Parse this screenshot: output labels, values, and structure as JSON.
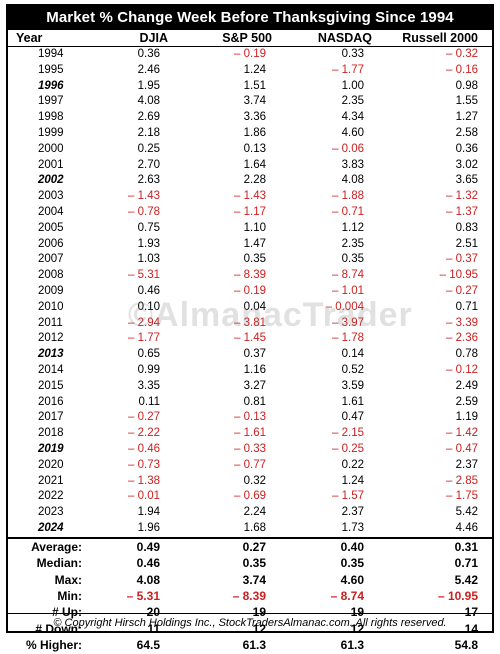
{
  "title": "Market % Change Week Before Thanksgiving Since 1994",
  "headers": [
    "Year",
    "DJIA",
    "S&P 500",
    "NASDAQ",
    "Russell 2000"
  ],
  "colors": {
    "negative": "#cc1f1f",
    "header_bg": "#000000"
  },
  "rows": [
    {
      "year": "1994",
      "election": false,
      "djia": "0.36",
      "sp": "– 0.19",
      "nasdaq": "0.33",
      "russell": "– 0.32"
    },
    {
      "year": "1995",
      "election": false,
      "djia": "2.46",
      "sp": "1.24",
      "nasdaq": "– 1.77",
      "russell": "– 0.16"
    },
    {
      "year": "1996",
      "election": true,
      "djia": "1.95",
      "sp": "1.51",
      "nasdaq": "1.00",
      "russell": "0.98"
    },
    {
      "year": "1997",
      "election": false,
      "djia": "4.08",
      "sp": "3.74",
      "nasdaq": "2.35",
      "russell": "1.55"
    },
    {
      "year": "1998",
      "election": false,
      "djia": "2.69",
      "sp": "3.36",
      "nasdaq": "4.34",
      "russell": "1.27"
    },
    {
      "year": "1999",
      "election": false,
      "djia": "2.18",
      "sp": "1.86",
      "nasdaq": "4.60",
      "russell": "2.58"
    },
    {
      "year": "2000",
      "election": false,
      "djia": "0.25",
      "sp": "0.13",
      "nasdaq": "– 0.06",
      "russell": "0.36"
    },
    {
      "year": "2001",
      "election": false,
      "djia": "2.70",
      "sp": "1.64",
      "nasdaq": "3.83",
      "russell": "3.02"
    },
    {
      "year": "2002",
      "election": true,
      "djia": "2.63",
      "sp": "2.28",
      "nasdaq": "4.08",
      "russell": "3.65"
    },
    {
      "year": "2003",
      "election": false,
      "djia": "– 1.43",
      "sp": "– 1.43",
      "nasdaq": "– 1.88",
      "russell": "– 1.32"
    },
    {
      "year": "2004",
      "election": false,
      "djia": "– 0.78",
      "sp": "– 1.17",
      "nasdaq": "– 0.71",
      "russell": "– 1.37"
    },
    {
      "year": "2005",
      "election": false,
      "djia": "0.75",
      "sp": "1.10",
      "nasdaq": "1.12",
      "russell": "0.83"
    },
    {
      "year": "2006",
      "election": false,
      "djia": "1.93",
      "sp": "1.47",
      "nasdaq": "2.35",
      "russell": "2.51"
    },
    {
      "year": "2007",
      "election": false,
      "djia": "1.03",
      "sp": "0.35",
      "nasdaq": "0.35",
      "russell": "– 0.37"
    },
    {
      "year": "2008",
      "election": false,
      "djia": "– 5.31",
      "sp": "– 8.39",
      "nasdaq": "– 8.74",
      "russell": "– 10.95"
    },
    {
      "year": "2009",
      "election": false,
      "djia": "0.46",
      "sp": "– 0.19",
      "nasdaq": "– 1.01",
      "russell": "– 0.27"
    },
    {
      "year": "2010",
      "election": false,
      "djia": "0.10",
      "sp": "0.04",
      "nasdaq": "– 0.004",
      "russell": "0.71"
    },
    {
      "year": "2011",
      "election": false,
      "djia": "– 2.94",
      "sp": "– 3.81",
      "nasdaq": "– 3.97",
      "russell": "– 3.39"
    },
    {
      "year": "2012",
      "election": false,
      "djia": "– 1.77",
      "sp": "– 1.45",
      "nasdaq": "– 1.78",
      "russell": "– 2.36"
    },
    {
      "year": "2013",
      "election": true,
      "djia": "0.65",
      "sp": "0.37",
      "nasdaq": "0.14",
      "russell": "0.78"
    },
    {
      "year": "2014",
      "election": false,
      "djia": "0.99",
      "sp": "1.16",
      "nasdaq": "0.52",
      "russell": "– 0.12"
    },
    {
      "year": "2015",
      "election": false,
      "djia": "3.35",
      "sp": "3.27",
      "nasdaq": "3.59",
      "russell": "2.49"
    },
    {
      "year": "2016",
      "election": false,
      "djia": "0.11",
      "sp": "0.81",
      "nasdaq": "1.61",
      "russell": "2.59"
    },
    {
      "year": "2017",
      "election": false,
      "djia": "– 0.27",
      "sp": "– 0.13",
      "nasdaq": "0.47",
      "russell": "1.19"
    },
    {
      "year": "2018",
      "election": false,
      "djia": "– 2.22",
      "sp": "– 1.61",
      "nasdaq": "– 2.15",
      "russell": "– 1.42"
    },
    {
      "year": "2019",
      "election": true,
      "djia": "– 0.46",
      "sp": "– 0.33",
      "nasdaq": "– 0.25",
      "russell": "– 0.47"
    },
    {
      "year": "2020",
      "election": false,
      "djia": "– 0.73",
      "sp": "– 0.77",
      "nasdaq": "0.22",
      "russell": "2.37"
    },
    {
      "year": "2021",
      "election": false,
      "djia": "– 1.38",
      "sp": "0.32",
      "nasdaq": "1.24",
      "russell": "– 2.85"
    },
    {
      "year": "2022",
      "election": false,
      "djia": "– 0.01",
      "sp": "– 0.69",
      "nasdaq": "– 1.57",
      "russell": "– 1.75"
    },
    {
      "year": "2023",
      "election": false,
      "djia": "1.94",
      "sp": "2.24",
      "nasdaq": "2.37",
      "russell": "5.42"
    },
    {
      "year": "2024",
      "election": true,
      "djia": "1.96",
      "sp": "1.68",
      "nasdaq": "1.73",
      "russell": "4.46"
    }
  ],
  "stats": [
    {
      "label": "Average:",
      "djia": "0.49",
      "sp": "0.27",
      "nasdaq": "0.40",
      "russell": "0.31"
    },
    {
      "label": "Median:",
      "djia": "0.46",
      "sp": "0.35",
      "nasdaq": "0.35",
      "russell": "0.71"
    },
    {
      "label": "Max:",
      "djia": "4.08",
      "sp": "3.74",
      "nasdaq": "4.60",
      "russell": "5.42"
    },
    {
      "label": "Min:",
      "djia": "– 5.31",
      "sp": "– 8.39",
      "nasdaq": "– 8.74",
      "russell": "– 10.95"
    },
    {
      "label": "# Up:",
      "djia": "20",
      "sp": "19",
      "nasdaq": "19",
      "russell": "17"
    },
    {
      "label": "# Down:",
      "djia": "11",
      "sp": "12",
      "nasdaq": "12",
      "russell": "14"
    },
    {
      "label": "% Higher:",
      "djia": "64.5",
      "sp": "61.3",
      "nasdaq": "61.3",
      "russell": "54.8"
    }
  ],
  "footer": "© Copyright Hirsch Holdings Inc., StockTradersAlmanac.com. All rights reserved.",
  "watermark": "©AlmanacTrader"
}
